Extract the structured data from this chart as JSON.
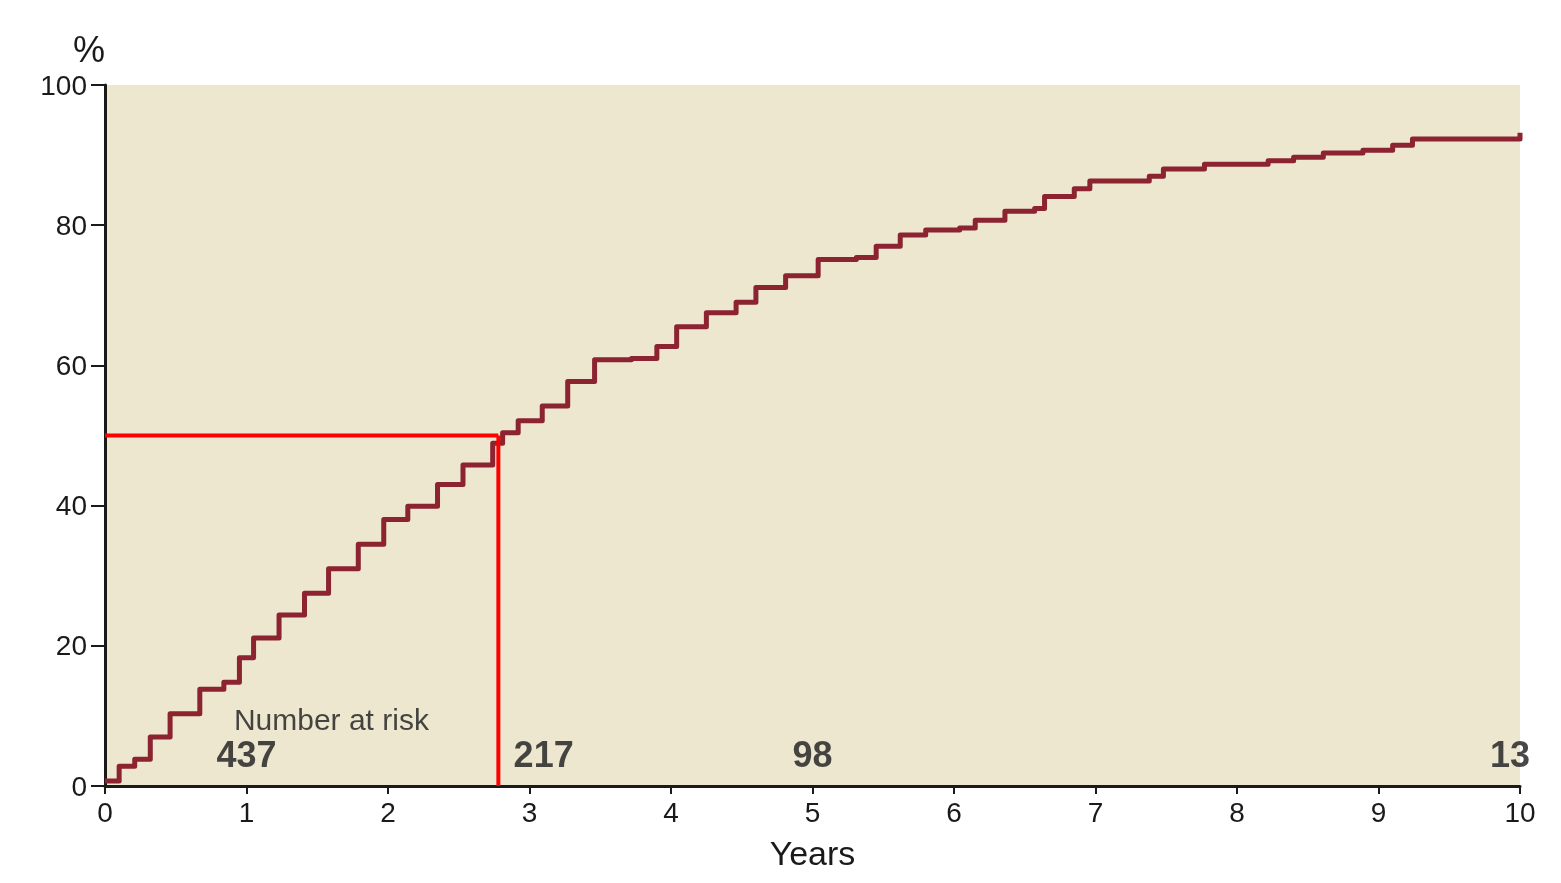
{
  "chart_data": {
    "type": "step",
    "xlabel": "Years",
    "ylabel": "%",
    "xlim": [
      0,
      10
    ],
    "xticks": [
      0,
      1,
      2,
      3,
      4,
      5,
      6,
      7,
      8,
      9,
      10
    ],
    "ylim": [
      0,
      100
    ],
    "yticks": [
      0,
      20,
      40,
      60,
      80,
      100
    ],
    "grid": false,
    "marker": "none",
    "series": [
      {
        "color": "#8b2330",
        "x": [
          0,
          0.1,
          0.21,
          0.32,
          0.46,
          0.67,
          0.84,
          0.95,
          1.05,
          1.23,
          1.41,
          1.58,
          1.79,
          1.97,
          2.14,
          2.35,
          2.53,
          2.74,
          2.81,
          2.92,
          3.09,
          3.27,
          3.46,
          3.72,
          3.9,
          4.04,
          4.25,
          4.46,
          4.6,
          4.81,
          5.04,
          5.31,
          5.45,
          5.62,
          5.8,
          6.04,
          6.15,
          6.36,
          6.57,
          6.64,
          6.85,
          6.96,
          7.38,
          7.48,
          7.77,
          8.22,
          8.4,
          8.61,
          8.89,
          9.1,
          9.24,
          9.66,
          10
        ],
        "values": [
          0.7,
          2.8,
          3.8,
          7,
          10.3,
          13.8,
          14.8,
          18.3,
          21.1,
          24.4,
          27.5,
          31,
          34.5,
          38,
          39.9,
          43,
          45.8,
          48.9,
          50.4,
          52.1,
          54.2,
          57.7,
          60.8,
          61,
          62.7,
          65.5,
          67.5,
          69,
          71.1,
          72.8,
          75.1,
          75.4,
          77,
          78.6,
          79.3,
          79.6,
          80.7,
          82,
          82.4,
          84.1,
          85.2,
          86.3,
          87,
          88,
          88.7,
          89.2,
          89.7,
          90.3,
          90.7,
          91.4,
          92.3,
          92.3,
          93.2
        ]
      }
    ],
    "ref_lines": [
      {
        "axis": "y",
        "value": 50,
        "color": "#ff0000"
      },
      {
        "axis": "x",
        "value": 2.78,
        "color": "#ff0000"
      }
    ],
    "annotations": [
      "Number at risk",
      "437",
      "217",
      "98",
      "13"
    ]
  }
}
